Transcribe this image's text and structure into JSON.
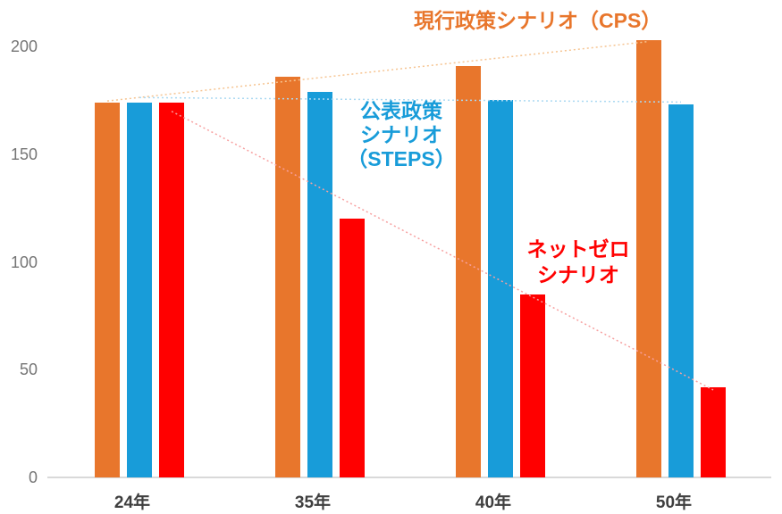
{
  "chart_data": {
    "type": "bar",
    "title": "",
    "categories": [
      "24年",
      "35年",
      "40年",
      "50年"
    ],
    "series": [
      {
        "key": "cps",
        "name": "現行政策シナリオ（CPS）",
        "values": [
          174,
          186,
          191,
          203
        ],
        "color": "#E8762C",
        "trend_color": "#F6C491",
        "trendline": "linear-dotted"
      },
      {
        "key": "steps",
        "name": "公表政策シナリオ（STEPS）",
        "values": [
          174,
          179,
          175,
          173
        ],
        "color": "#189CD9",
        "trend_color": "#ABD9F2",
        "trendline": "linear-dotted"
      },
      {
        "key": "netzero",
        "name": "ネットゼロシナリオ",
        "values": [
          174,
          120,
          85,
          42
        ],
        "color": "#FF0000",
        "trend_color": "#F7A0A0",
        "trendline": "linear-dotted"
      }
    ],
    "y_ticks": [
      0,
      50,
      100,
      150,
      200
    ],
    "ylim": [
      0,
      210
    ],
    "xlabel": "",
    "ylabel": "",
    "grid": false,
    "legend_position": "none"
  },
  "axes": {
    "x_labels": [
      "24年",
      "35年",
      "40年",
      "50年"
    ],
    "y_labels": [
      "0",
      "50",
      "100",
      "150",
      "200"
    ],
    "axis_line_color": "#d9d9d9",
    "y_label_color": "#757575",
    "x_label_color": "#3f3f3f"
  },
  "annotations": {
    "cps_label": {
      "text": "現行政策シナリオ（CPS）",
      "color": "#E8762C"
    },
    "steps_label": {
      "text": "公表政策\nシナリオ\n（STEPS）",
      "color": "#189CD9"
    },
    "netzero_label": {
      "text": "ネットゼロ\nシナリオ",
      "color": "#FF0000"
    }
  }
}
